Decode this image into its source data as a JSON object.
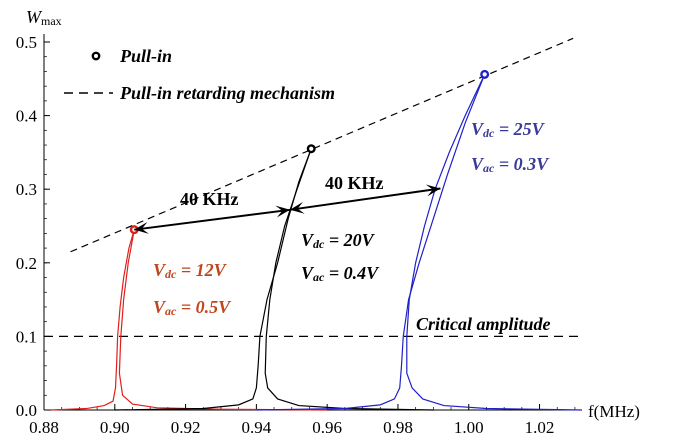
{
  "chart_data": {
    "type": "line",
    "title": "",
    "ylabel_main": "W",
    "ylabel_sub": "max",
    "xlabel": "f(MHz)",
    "xlim": [
      0.88,
      1.032
    ],
    "ylim": [
      0,
      0.5
    ],
    "xticks": [
      {
        "value": 0.88,
        "label": "0.88"
      },
      {
        "value": 0.9,
        "label": "0.90"
      },
      {
        "value": 0.92,
        "label": "0.92"
      },
      {
        "value": 0.94,
        "label": "0.94"
      },
      {
        "value": 0.96,
        "label": "0.96"
      },
      {
        "value": 0.98,
        "label": "0.98"
      },
      {
        "value": 1.0,
        "label": "1.00"
      },
      {
        "value": 1.02,
        "label": "1.02"
      }
    ],
    "yticks": [
      {
        "value": 0.0,
        "label": "0.0"
      },
      {
        "value": 0.1,
        "label": "0.1"
      },
      {
        "value": 0.2,
        "label": "0.2"
      },
      {
        "value": 0.3,
        "label": "0.3"
      },
      {
        "value": 0.4,
        "label": "0.4"
      },
      {
        "value": 0.5,
        "label": "0.5"
      }
    ],
    "legend": {
      "placement": "top-left",
      "items": [
        {
          "label": "Pull-in",
          "marker": "circle"
        },
        {
          "label": "Pull-in retarding mechanism",
          "marker": "dashed-line"
        }
      ]
    },
    "series": [
      {
        "color": "#e0201c",
        "label_color": "#c0461c",
        "vdc_label": "V",
        "vdc_sub": "dc",
        "vdc_value": " = 12V",
        "vac_label": "V",
        "vac_sub": "ac",
        "vac_value": " = 0.5V",
        "left_branch": [
          [
            0.882,
            0.0
          ],
          [
            0.892,
            0.002
          ],
          [
            0.897,
            0.006
          ],
          [
            0.8995,
            0.012
          ],
          [
            0.9002,
            0.03
          ],
          [
            0.9005,
            0.06
          ],
          [
            0.9008,
            0.1
          ],
          [
            0.9015,
            0.14
          ],
          [
            0.9025,
            0.18
          ],
          [
            0.904,
            0.22
          ],
          [
            0.9055,
            0.245
          ]
        ],
        "right_branch": [
          [
            0.9055,
            0.245
          ],
          [
            0.9038,
            0.2
          ],
          [
            0.9025,
            0.15
          ],
          [
            0.9017,
            0.1
          ],
          [
            0.9013,
            0.05
          ],
          [
            0.9022,
            0.02
          ],
          [
            0.905,
            0.008
          ],
          [
            0.912,
            0.003
          ],
          [
            0.93,
            0.001
          ],
          [
            0.96,
            0.0
          ]
        ],
        "pull_in": [
          0.9055,
          0.245
        ]
      },
      {
        "color": "#000000",
        "label_color": "#000000",
        "vdc_label": "V",
        "vdc_sub": "dc",
        "vdc_value": " = 20V",
        "vac_label": "V",
        "vac_sub": "ac",
        "vac_value": " = 0.4V",
        "left_branch": [
          [
            0.9,
            0.0
          ],
          [
            0.925,
            0.002
          ],
          [
            0.935,
            0.007
          ],
          [
            0.939,
            0.015
          ],
          [
            0.94,
            0.03
          ],
          [
            0.9405,
            0.06
          ],
          [
            0.941,
            0.1
          ],
          [
            0.943,
            0.15
          ],
          [
            0.946,
            0.2
          ],
          [
            0.949,
            0.26
          ],
          [
            0.952,
            0.31
          ],
          [
            0.9555,
            0.355
          ]
        ],
        "right_branch": [
          [
            0.9555,
            0.355
          ],
          [
            0.9515,
            0.3
          ],
          [
            0.948,
            0.25
          ],
          [
            0.9455,
            0.2
          ],
          [
            0.9438,
            0.15
          ],
          [
            0.9428,
            0.1
          ],
          [
            0.9425,
            0.05
          ],
          [
            0.9432,
            0.03
          ],
          [
            0.946,
            0.015
          ],
          [
            0.952,
            0.006
          ],
          [
            0.965,
            0.002
          ],
          [
            0.99,
            0.0
          ]
        ],
        "pull_in": [
          0.9555,
          0.355
        ]
      },
      {
        "color": "#2020c8",
        "label_color": "#3a3a9a",
        "vdc_label": "V",
        "vdc_sub": "dc",
        "vdc_value": " = 25V",
        "vac_label": "V",
        "vac_sub": "ac",
        "vac_value": " = 0.3V",
        "left_branch": [
          [
            0.94,
            0.0
          ],
          [
            0.965,
            0.002
          ],
          [
            0.975,
            0.007
          ],
          [
            0.979,
            0.015
          ],
          [
            0.9805,
            0.03
          ],
          [
            0.981,
            0.06
          ],
          [
            0.9815,
            0.1
          ],
          [
            0.983,
            0.15
          ],
          [
            0.986,
            0.2
          ],
          [
            0.99,
            0.26
          ],
          [
            0.994,
            0.32
          ],
          [
            0.999,
            0.39
          ],
          [
            1.0045,
            0.456
          ]
        ],
        "right_branch": [
          [
            1.0045,
            0.456
          ],
          [
            0.999,
            0.4
          ],
          [
            0.9945,
            0.35
          ],
          [
            0.9905,
            0.3
          ],
          [
            0.9875,
            0.25
          ],
          [
            0.985,
            0.2
          ],
          [
            0.9832,
            0.15
          ],
          [
            0.9825,
            0.1
          ],
          [
            0.9825,
            0.05
          ],
          [
            0.984,
            0.03
          ],
          [
            0.987,
            0.015
          ],
          [
            0.993,
            0.006
          ],
          [
            1.005,
            0.002
          ],
          [
            1.032,
            0.0
          ]
        ],
        "pull_in": [
          1.0045,
          0.456
        ]
      }
    ],
    "retarding_line": [
      [
        0.8875,
        0.215
      ],
      [
        1.0295,
        0.505
      ]
    ],
    "critical_amplitude": {
      "value": 0.1,
      "label": "Critical amplitude"
    },
    "annotations": [
      {
        "label": "40 KHz",
        "from": [
          0.9055,
          0.245
        ],
        "to": [
          0.9495,
          0.272
        ]
      },
      {
        "label": "40 KHz",
        "from": [
          0.9495,
          0.272
        ],
        "to": [
          0.992,
          0.301
        ]
      }
    ]
  }
}
